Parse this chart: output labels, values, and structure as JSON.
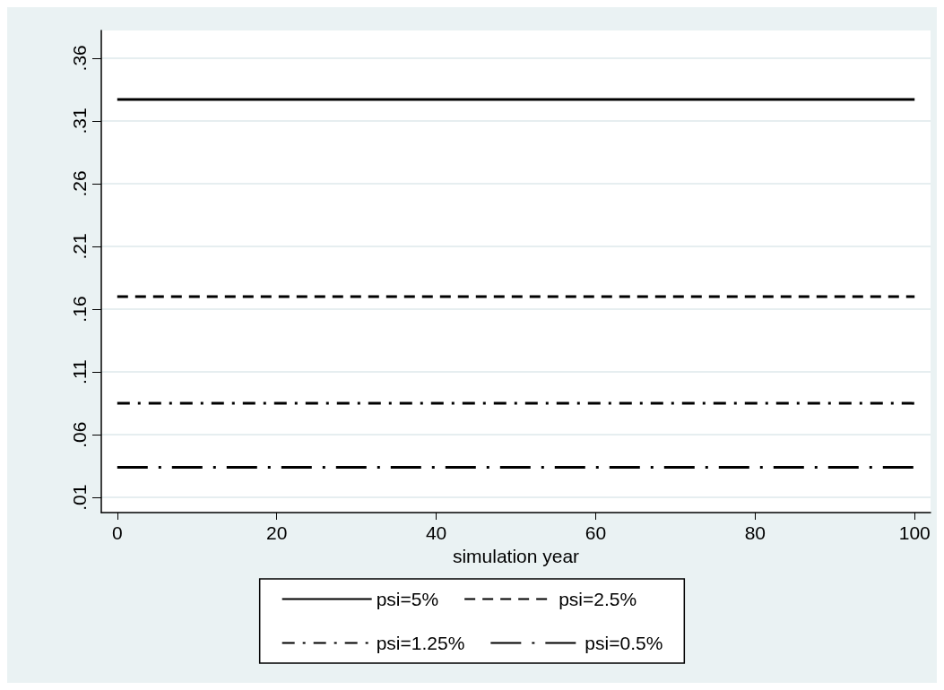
{
  "chart_data": {
    "type": "line",
    "xlabel": "simulation year",
    "x": [
      0,
      100
    ],
    "series": [
      {
        "name": "psi=5%",
        "color": "#000000",
        "values": [
          0.327,
          0.327
        ],
        "line_style": "solid"
      },
      {
        "name": "psi=2.5%",
        "color": "#000000",
        "values": [
          0.17,
          0.17
        ],
        "line_style": "dashed"
      },
      {
        "name": "psi=1.25%",
        "color": "#000000",
        "values": [
          0.085,
          0.085
        ],
        "line_style": "dashdot"
      },
      {
        "name": "psi=0.5%",
        "color": "#000000",
        "values": [
          0.034,
          0.034
        ],
        "line_style": "longdashdot"
      }
    ],
    "xlim": [
      -2,
      102
    ],
    "xticks": [
      0,
      20,
      40,
      60,
      80,
      100
    ],
    "ylim": [
      -0.002,
      0.382
    ],
    "yticks": [
      {
        "value": 0.01,
        "label": ".01"
      },
      {
        "value": 0.06,
        "label": ".06"
      },
      {
        "value": 0.11,
        "label": ".11"
      },
      {
        "value": 0.16,
        "label": ".16"
      },
      {
        "value": 0.21,
        "label": ".21"
      },
      {
        "value": 0.26,
        "label": ".26"
      },
      {
        "value": 0.31,
        "label": ".31"
      },
      {
        "value": 0.36,
        "label": ".36"
      }
    ],
    "grid": "y",
    "legend": "bottom",
    "marker": "none"
  }
}
